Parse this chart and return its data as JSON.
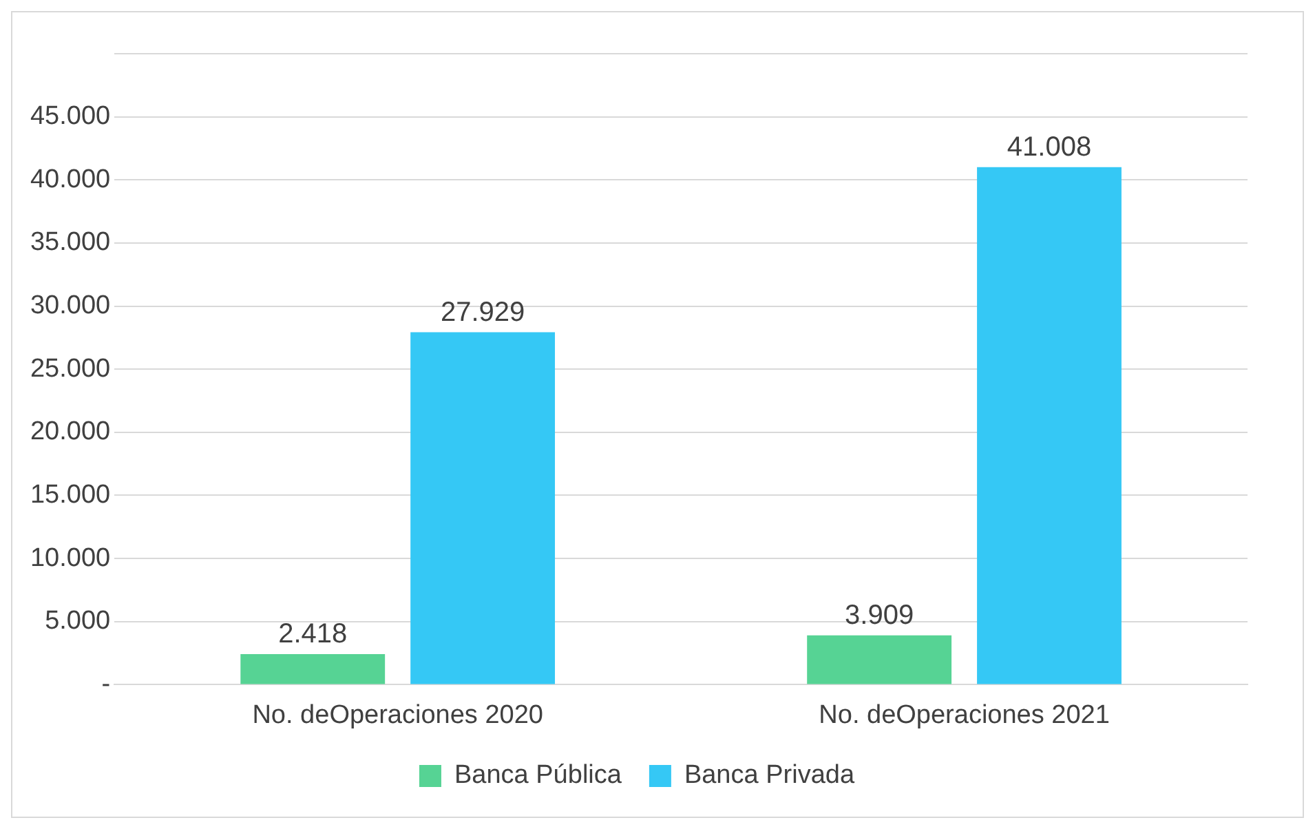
{
  "chart_data": {
    "type": "bar",
    "categories": [
      "No. deOperaciones 2020",
      "No. deOperaciones 2021"
    ],
    "series": [
      {
        "name": "Banca Pública",
        "color": "#56d394",
        "values": [
          2418,
          3909
        ],
        "value_labels": [
          "2.418",
          "3.909"
        ]
      },
      {
        "name": "Banca Privada",
        "color": "#35c8f5",
        "values": [
          27929,
          41008
        ],
        "value_labels": [
          "27.929",
          "41.008"
        ]
      }
    ],
    "ylim": [
      0,
      50000
    ],
    "yticks": [
      {
        "value": 0,
        "label": "-"
      },
      {
        "value": 5000,
        "label": "5.000"
      },
      {
        "value": 10000,
        "label": "10.000"
      },
      {
        "value": 15000,
        "label": "15.000"
      },
      {
        "value": 20000,
        "label": "20.000"
      },
      {
        "value": 25000,
        "label": "25.000"
      },
      {
        "value": 30000,
        "label": "30.000"
      },
      {
        "value": 35000,
        "label": "35.000"
      },
      {
        "value": 40000,
        "label": "40.000"
      },
      {
        "value": 45000,
        "label": "45.000"
      },
      {
        "value": 50000,
        "label": null
      }
    ],
    "grid": "y",
    "legend": "bottom"
  }
}
